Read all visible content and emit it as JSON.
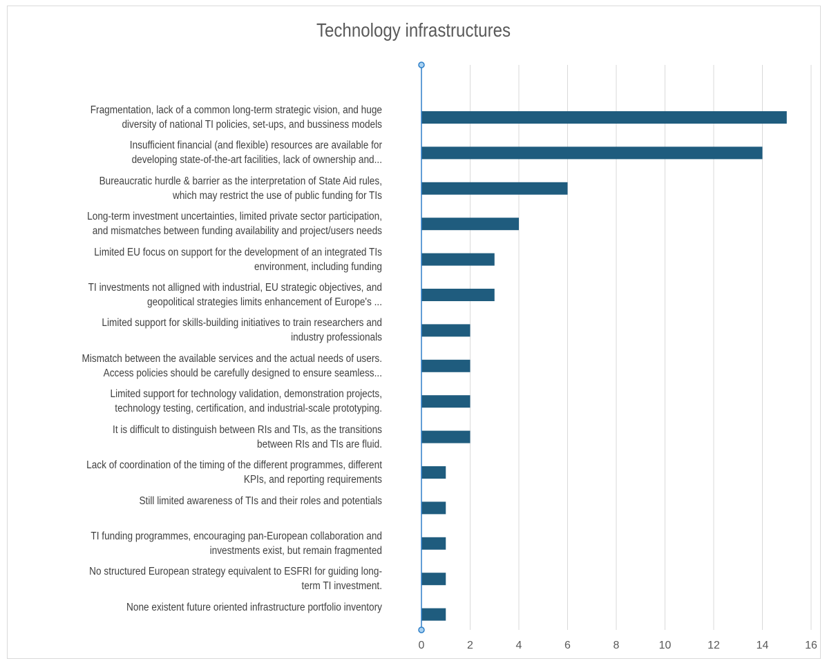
{
  "chart_data": {
    "type": "bar",
    "orientation": "horizontal",
    "title": "Technology infrastructures",
    "xlabel": "",
    "ylabel": "",
    "xlim": [
      0,
      16
    ],
    "x_ticks": [
      "0",
      "2",
      "4",
      "6",
      "8",
      "10",
      "12",
      "14",
      "16"
    ],
    "grid": true,
    "legend": "none",
    "bar_color": "#1f5c7e",
    "categories": [
      [
        "Fragmentation, lack of a common long-term strategic vision, and huge",
        "diversity of national TI policies, set-ups, and bussiness models"
      ],
      [
        "Insufficient financial (and flexible) resources are available for",
        "developing state-of-the-art facilities, lack of ownership and..."
      ],
      [
        "Bureaucratic hurdle & barrier as the interpretation of State Aid rules,",
        "which may restrict the use of public funding for TIs"
      ],
      [
        "Long-term investment uncertainties, limited private sector participation,",
        "and mismatches between funding availability and project/users needs"
      ],
      [
        "Limited EU  focus on support for the development of an integrated TIs",
        "environment, including funding"
      ],
      [
        "TI investments not alligned with industrial, EU strategic objectives, and",
        "geopolitical strategies limits enhancement of Europe's        ..."
      ],
      [
        "Limited support for skills-building initiatives to train researchers and",
        "industry professionals"
      ],
      [
        "Mismatch between the available services and the actual needs of users.",
        "Access policies should be carefully designed to ensure seamless..."
      ],
      [
        "Limited support for technology validation, demonstration projects,",
        "technology testing, certification, and industrial-scale prototyping."
      ],
      [
        "It is difficult to distinguish between RIs and TIs, as the transitions",
        "between RIs and TIs are fluid."
      ],
      [
        "Lack of coordination of the timing of the different programmes, different",
        "KPIs, and reporting requirements"
      ],
      [
        "Still limited awareness of TIs and their roles and potentials"
      ],
      [
        "TI funding programmes, encouraging pan-European collaboration and",
        "investments exist, but remain fragmented"
      ],
      [
        "No structured European strategy equivalent to ESFRI for guiding long-",
        "term TI investment."
      ],
      [
        "None existent future oriented infrastructure portfolio inventory"
      ]
    ],
    "values": [
      15,
      14,
      6,
      4,
      3,
      3,
      2,
      2,
      2,
      2,
      1,
      1,
      1,
      1,
      1
    ]
  }
}
